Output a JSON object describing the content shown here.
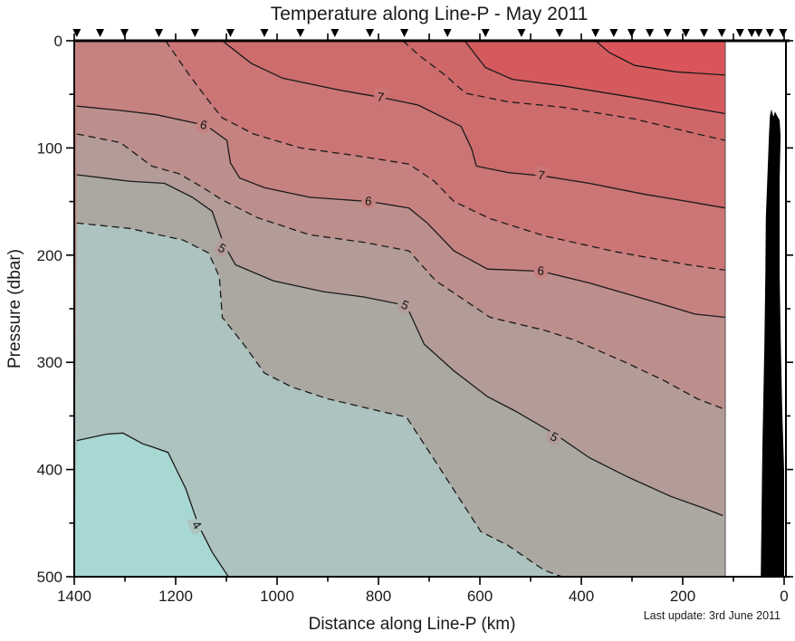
{
  "title": "Temperature along Line-P - May 2011",
  "footnote": "Last update: 3rd June 2011",
  "x_axis": {
    "label": "Distance along Line-P (km)",
    "min": 0,
    "max": 1400,
    "reversed": true,
    "major_ticks": [
      1400,
      1200,
      1000,
      800,
      600,
      400,
      200,
      0
    ],
    "minor_step": 100,
    "top_tick_step": 100
  },
  "y_axis": {
    "label": "Pressure (dbar)",
    "min": 0,
    "max": 500,
    "increases_downward": true,
    "major_ticks": [
      0,
      100,
      200,
      300,
      400,
      500
    ],
    "minor_step": 50
  },
  "station_markers_km": [
    1395,
    1349,
    1301,
    1233,
    1162,
    1092,
    1025,
    954,
    886,
    817,
    749,
    664,
    589,
    518,
    443,
    372,
    336,
    301,
    265,
    230,
    194,
    158,
    123,
    87,
    64,
    50,
    28,
    2
  ],
  "chart_data": {
    "type": "heatmap",
    "subtype": "filled-contour-ocean-section",
    "title": "Temperature along Line-P - May 2011",
    "xlabel": "Distance along Line-P (km)",
    "ylabel": "Pressure (dbar)",
    "xlim": [
      1400,
      0
    ],
    "ylim": [
      0,
      500
    ],
    "data_right_edge_km": 116,
    "line_color": "#1a1a1a",
    "band_colors": [
      {
        "range": ">8.5",
        "color": "#d9555b"
      },
      {
        "range": "8-8.5",
        "color": "#d55a5e"
      },
      {
        "range": "7.5-8",
        "color": "#cf6668"
      },
      {
        "range": "7-7.5",
        "color": "#cc6c6d"
      },
      {
        "range": "6.5-7",
        "color": "#cb7576"
      },
      {
        "range": "6-6.5",
        "color": "#c68181"
      },
      {
        "range": "5.5-6",
        "color": "#bd8f8c"
      },
      {
        "range": "5-5.5",
        "color": "#b39c98"
      },
      {
        "range": "4.5-5",
        "color": "#aba8a2"
      },
      {
        "range": "4-4.5",
        "color": "#adc3bf"
      },
      {
        "range": "<4",
        "color": "#a8d8d3"
      }
    ],
    "contours": [
      {
        "level": 8.5,
        "style": "solid",
        "fill_below": "#d55a5e",
        "points": [
          [
            372,
            0
          ],
          [
            345,
            11
          ],
          [
            295,
            23
          ],
          [
            215,
            29
          ],
          [
            116,
            32
          ]
        ],
        "labels": []
      },
      {
        "level": 8,
        "style": "solid",
        "fill_below": "#cf6668",
        "points": [
          [
            630,
            0
          ],
          [
            589,
            25
          ],
          [
            536,
            36
          ],
          [
            438,
            42
          ],
          [
            295,
            53
          ],
          [
            189,
            62
          ],
          [
            116,
            68
          ]
        ],
        "labels": []
      },
      {
        "level": 7.5,
        "style": "dashed",
        "fill_below": "#cc6c6d",
        "points": [
          [
            752,
            0
          ],
          [
            719,
            14
          ],
          [
            669,
            32
          ],
          [
            628,
            49
          ],
          [
            544,
            57
          ],
          [
            438,
            62
          ],
          [
            295,
            73
          ],
          [
            171,
            87
          ],
          [
            116,
            93
          ]
        ],
        "labels": []
      },
      {
        "level": 7,
        "style": "solid",
        "fill_below": "#cb7576",
        "points": [
          [
            1108,
            0
          ],
          [
            1051,
            21
          ],
          [
            989,
            35
          ],
          [
            877,
            46
          ],
          [
            793,
            53
          ],
          [
            722,
            60
          ],
          [
            637,
            80
          ],
          [
            616,
            101
          ],
          [
            607,
            117
          ],
          [
            544,
            123
          ],
          [
            477,
            126
          ],
          [
            384,
            133
          ],
          [
            278,
            143
          ],
          [
            189,
            150
          ],
          [
            116,
            156
          ]
        ],
        "labels": [
          {
            "text": "7",
            "km": 796,
            "dbar": 53,
            "rot": 8,
            "halo": "#cb7576"
          },
          {
            "text": "7",
            "km": 479,
            "dbar": 126,
            "rot": 10,
            "halo": "#cb7576"
          }
        ]
      },
      {
        "level": 6.5,
        "style": "dashed",
        "fill_below": "#c68181",
        "points": [
          [
            1220,
            0
          ],
          [
            1176,
            30
          ],
          [
            1140,
            53
          ],
          [
            1108,
            72
          ],
          [
            1046,
            87
          ],
          [
            954,
            100
          ],
          [
            847,
            107
          ],
          [
            740,
            115
          ],
          [
            690,
            131
          ],
          [
            651,
            150
          ],
          [
            580,
            166
          ],
          [
            473,
            182
          ],
          [
            331,
            197
          ],
          [
            189,
            209
          ],
          [
            116,
            214
          ]
        ],
        "labels": []
      },
      {
        "level": 6,
        "style": "solid",
        "fill_below": "#bd8f8c",
        "points": [
          [
            1395,
            61
          ],
          [
            1309,
            65
          ],
          [
            1238,
            69
          ],
          [
            1140,
            79
          ],
          [
            1099,
            93
          ],
          [
            1092,
            114
          ],
          [
            1074,
            128
          ],
          [
            1025,
            137
          ],
          [
            936,
            146
          ],
          [
            817,
            150
          ],
          [
            740,
            156
          ],
          [
            704,
            170
          ],
          [
            651,
            196
          ],
          [
            585,
            213
          ],
          [
            479,
            215
          ],
          [
            384,
            226
          ],
          [
            260,
            243
          ],
          [
            176,
            255
          ],
          [
            116,
            258
          ]
        ],
        "labels": [
          {
            "text": "6",
            "km": 1145,
            "dbar": 79,
            "rot": 15,
            "halo": "#c68181"
          },
          {
            "text": "6",
            "km": 820,
            "dbar": 150,
            "rot": 8,
            "halo": "#c68181"
          },
          {
            "text": "6",
            "km": 480,
            "dbar": 215,
            "rot": 5,
            "halo": "#c68181"
          }
        ]
      },
      {
        "level": 5.5,
        "style": "dashed",
        "fill_below": "#b39c98",
        "points": [
          [
            1395,
            87
          ],
          [
            1309,
            95
          ],
          [
            1247,
            117
          ],
          [
            1194,
            124
          ],
          [
            1146,
            137
          ],
          [
            1110,
            148
          ],
          [
            1039,
            165
          ],
          [
            936,
            181
          ],
          [
            829,
            188
          ],
          [
            740,
            196
          ],
          [
            687,
            224
          ],
          [
            580,
            258
          ],
          [
            473,
            270
          ],
          [
            415,
            279
          ],
          [
            313,
            300
          ],
          [
            237,
            317
          ],
          [
            171,
            334
          ],
          [
            116,
            344
          ]
        ],
        "labels": []
      },
      {
        "level": 5,
        "style": "solid",
        "fill_below": "#aba8a2",
        "points": [
          [
            1395,
            125
          ],
          [
            1292,
            131
          ],
          [
            1222,
            133
          ],
          [
            1167,
            146
          ],
          [
            1128,
            159
          ],
          [
            1105,
            190
          ],
          [
            1082,
            209
          ],
          [
            1007,
            224
          ],
          [
            909,
            234
          ],
          [
            829,
            239
          ],
          [
            745,
            247
          ],
          [
            710,
            283
          ],
          [
            651,
            308
          ],
          [
            585,
            332
          ],
          [
            532,
            345
          ],
          [
            452,
            367
          ],
          [
            384,
            389
          ],
          [
            308,
            407
          ],
          [
            224,
            425
          ],
          [
            153,
            437
          ],
          [
            121,
            443
          ]
        ],
        "labels": [
          {
            "text": "5",
            "km": 1109,
            "dbar": 194,
            "rot": 30,
            "halo": "#b39c98"
          },
          {
            "text": "5",
            "km": 748,
            "dbar": 247,
            "rot": 25,
            "halo": "#b39c98"
          },
          {
            "text": "5",
            "km": 454,
            "dbar": 370,
            "rot": 30,
            "halo": "#b39c98"
          }
        ]
      },
      {
        "level": 4.5,
        "style": "dashed",
        "fill_below": "#adc3bf",
        "points": [
          [
            1395,
            170
          ],
          [
            1292,
            175
          ],
          [
            1185,
            186
          ],
          [
            1135,
            198
          ],
          [
            1114,
            220
          ],
          [
            1108,
            258
          ],
          [
            1066,
            283
          ],
          [
            1025,
            310
          ],
          [
            971,
            323
          ],
          [
            900,
            334
          ],
          [
            793,
            346
          ],
          [
            745,
            351
          ],
          [
            687,
            393
          ],
          [
            598,
            458
          ],
          [
            544,
            471
          ],
          [
            473,
            494
          ],
          [
            438,
            500
          ]
        ],
        "labels": []
      },
      {
        "level": 4,
        "style": "solid",
        "fill_below": "#a8d8d3",
        "points": [
          [
            1395,
            373
          ],
          [
            1336,
            367
          ],
          [
            1304,
            366
          ],
          [
            1265,
            376
          ],
          [
            1251,
            378
          ],
          [
            1215,
            384
          ],
          [
            1180,
            418
          ],
          [
            1155,
            452
          ],
          [
            1128,
            477
          ],
          [
            1096,
            500
          ]
        ],
        "labels": [
          {
            "text": "4",
            "km": 1159,
            "dbar": 452,
            "rot": 55,
            "halo": "#adc3bf"
          }
        ]
      }
    ],
    "bathymetry_km_dbar": [
      [
        46,
        500
      ],
      [
        43,
        384
      ],
      [
        39,
        283
      ],
      [
        37,
        215
      ],
      [
        36,
        165
      ],
      [
        32,
        114
      ],
      [
        30,
        89
      ],
      [
        28,
        70
      ],
      [
        25,
        64
      ],
      [
        21,
        71
      ],
      [
        18,
        66
      ],
      [
        14,
        70
      ],
      [
        9,
        74
      ],
      [
        7,
        89
      ],
      [
        9,
        131
      ],
      [
        9,
        215
      ],
      [
        7,
        274
      ],
      [
        4,
        342
      ],
      [
        0,
        401
      ],
      [
        0,
        500
      ]
    ],
    "bathymetry_color": "#000000"
  }
}
